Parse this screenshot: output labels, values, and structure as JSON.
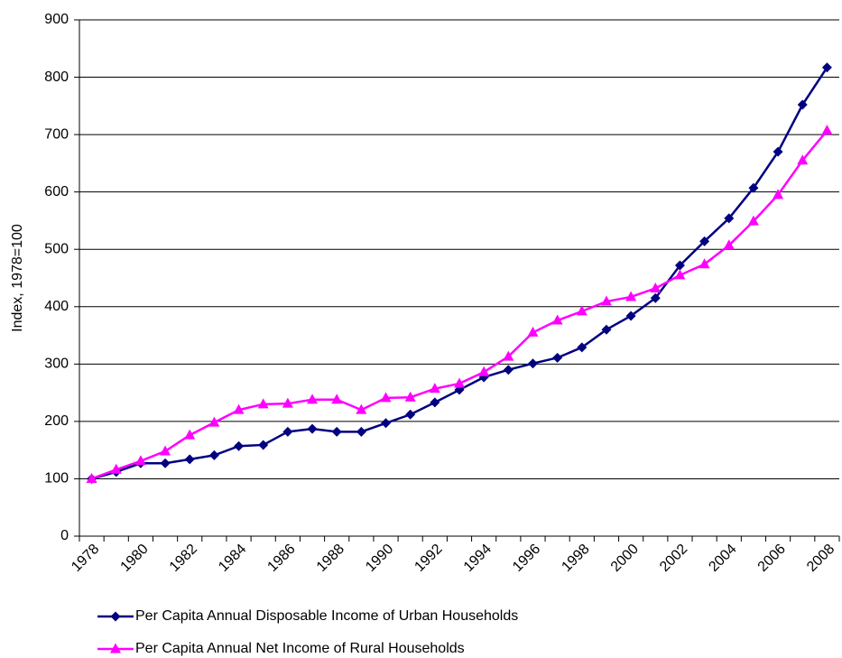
{
  "chart_data": {
    "type": "line",
    "y_label": "Index, 1978=100",
    "categories": [
      "1978",
      null,
      "1980",
      null,
      "1982",
      null,
      "1984",
      null,
      "1986",
      null,
      "1988",
      null,
      "1990",
      null,
      "1992",
      null,
      "1994",
      null,
      "1996",
      null,
      "1998",
      null,
      "2000",
      null,
      "2002",
      null,
      "2004",
      null,
      "2006",
      null,
      "2008"
    ],
    "series": [
      {
        "name": "Per Capita Annual Disposable Income of Urban Households",
        "color": "#000080",
        "marker": "diamond",
        "values": [
          100,
          112,
          127,
          127,
          134,
          141,
          157,
          159,
          182,
          187,
          182,
          182,
          197,
          212,
          233,
          255,
          277,
          290,
          301,
          311,
          329,
          360,
          384,
          415,
          472,
          514,
          554,
          607,
          670,
          752,
          817
        ]
      },
      {
        "name": "Per Capita Annual Net Income of Rural Households",
        "color": "#ff00ff",
        "marker": "triangle",
        "values": [
          100,
          116,
          131,
          148,
          176,
          198,
          220,
          230,
          231,
          238,
          238,
          220,
          241,
          242,
          257,
          266,
          286,
          313,
          355,
          376,
          392,
          409,
          417,
          432,
          455,
          474,
          507,
          549,
          595,
          655,
          707
        ]
      }
    ],
    "ylim": [
      0,
      900
    ],
    "yticks": [
      0,
      100,
      200,
      300,
      400,
      500,
      600,
      700,
      800,
      900
    ],
    "grid": true,
    "legend": "bottom"
  }
}
